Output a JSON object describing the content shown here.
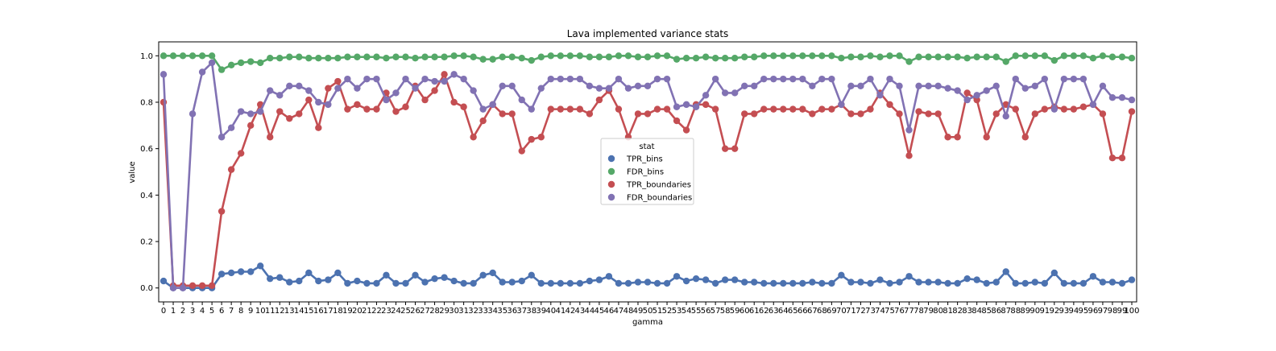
{
  "chart_data": {
    "type": "line",
    "title": "Lava implemented variance stats",
    "xlabel": "gamma",
    "ylabel": "value",
    "ylim": [
      -0.06,
      1.06
    ],
    "yticks": [
      0.0,
      0.2,
      0.4,
      0.6,
      0.8,
      1.0
    ],
    "ytick_labels": [
      "0.0",
      "0.2",
      "0.4",
      "0.6",
      "0.8",
      "1.0"
    ],
    "grid": false,
    "legend": {
      "title": "stat",
      "placement": "center"
    },
    "categories": [
      "0",
      "1",
      "2",
      "3",
      "4",
      "5",
      "6",
      "7",
      "8",
      "9",
      "10",
      "11",
      "12",
      "13",
      "14",
      "15",
      "16",
      "17",
      "18",
      "19",
      "20",
      "21",
      "22",
      "23",
      "24",
      "25",
      "26",
      "27",
      "28",
      "29",
      "30",
      "31",
      "32",
      "33",
      "34",
      "35",
      "36",
      "37",
      "38",
      "39",
      "40",
      "41",
      "42",
      "43",
      "44",
      "45",
      "46",
      "47",
      "48",
      "49",
      "50",
      "51",
      "52",
      "53",
      "54",
      "55",
      "56",
      "57",
      "58",
      "59",
      "60",
      "61",
      "62",
      "63",
      "64",
      "65",
      "66",
      "67",
      "68",
      "69",
      "70",
      "71",
      "72",
      "73",
      "74",
      "75",
      "76",
      "77",
      "78",
      "79",
      "80",
      "81",
      "82",
      "83",
      "84",
      "85",
      "86",
      "87",
      "88",
      "89",
      "90",
      "91",
      "92",
      "93",
      "94",
      "95",
      "96",
      "97",
      "98",
      "99",
      "100"
    ],
    "series": [
      {
        "name": "TPR_bins",
        "color": "#4c72b0",
        "values": [
          0.03,
          0.0,
          0.0,
          0.0,
          0.0,
          0.0,
          0.06,
          0.065,
          0.07,
          0.07,
          0.095,
          0.04,
          0.045,
          0.025,
          0.03,
          0.065,
          0.03,
          0.035,
          0.065,
          0.02,
          0.03,
          0.02,
          0.02,
          0.055,
          0.02,
          0.02,
          0.055,
          0.025,
          0.04,
          0.045,
          0.03,
          0.02,
          0.02,
          0.055,
          0.065,
          0.025,
          0.025,
          0.03,
          0.055,
          0.02,
          0.02,
          0.02,
          0.02,
          0.02,
          0.03,
          0.035,
          0.05,
          0.02,
          0.02,
          0.025,
          0.025,
          0.02,
          0.02,
          0.05,
          0.03,
          0.04,
          0.035,
          0.02,
          0.035,
          0.035,
          0.025,
          0.025,
          0.02,
          0.02,
          0.02,
          0.02,
          0.02,
          0.025,
          0.02,
          0.02,
          0.055,
          0.025,
          0.025,
          0.02,
          0.035,
          0.02,
          0.025,
          0.05,
          0.025,
          0.025,
          0.025,
          0.02,
          0.02,
          0.04,
          0.035,
          0.02,
          0.025,
          0.07,
          0.02,
          0.02,
          0.025,
          0.02,
          0.065,
          0.02,
          0.02,
          0.02,
          0.05,
          0.025,
          0.025,
          0.02,
          0.035
        ]
      },
      {
        "name": "FDR_bins",
        "color": "#55a868",
        "values": [
          1.0,
          1.0,
          1.0,
          1.0,
          1.0,
          1.0,
          0.94,
          0.96,
          0.97,
          0.975,
          0.97,
          0.99,
          0.99,
          0.995,
          0.995,
          0.99,
          0.99,
          0.99,
          0.99,
          0.995,
          0.995,
          0.995,
          0.995,
          0.99,
          0.995,
          0.995,
          0.99,
          0.995,
          0.995,
          0.995,
          1.0,
          1.0,
          0.995,
          0.985,
          0.985,
          0.995,
          0.995,
          0.99,
          0.98,
          0.995,
          1.0,
          1.0,
          1.0,
          1.0,
          0.995,
          0.995,
          0.995,
          1.0,
          1.0,
          0.995,
          0.995,
          1.0,
          1.0,
          0.985,
          0.99,
          0.99,
          0.995,
          0.99,
          0.99,
          0.99,
          0.995,
          0.995,
          1.0,
          1.0,
          1.0,
          1.0,
          1.0,
          1.0,
          1.0,
          1.0,
          0.99,
          0.995,
          0.995,
          1.0,
          0.995,
          1.0,
          1.0,
          0.975,
          0.995,
          0.995,
          0.995,
          0.995,
          0.995,
          0.99,
          0.995,
          0.995,
          0.995,
          0.975,
          1.0,
          1.0,
          1.0,
          1.0,
          0.98,
          1.0,
          1.0,
          1.0,
          0.99,
          1.0,
          0.995,
          0.995,
          0.99
        ]
      },
      {
        "name": "TPR_boundaries",
        "color": "#c44e52",
        "values": [
          0.8,
          0.01,
          0.01,
          0.01,
          0.01,
          0.01,
          0.33,
          0.51,
          0.58,
          0.7,
          0.79,
          0.65,
          0.76,
          0.73,
          0.75,
          0.81,
          0.69,
          0.86,
          0.89,
          0.77,
          0.79,
          0.77,
          0.77,
          0.84,
          0.76,
          0.78,
          0.87,
          0.81,
          0.85,
          0.92,
          0.8,
          0.78,
          0.65,
          0.72,
          0.79,
          0.75,
          0.75,
          0.59,
          0.64,
          0.65,
          0.77,
          0.77,
          0.77,
          0.77,
          0.75,
          0.81,
          0.85,
          0.77,
          0.65,
          0.75,
          0.75,
          0.77,
          0.77,
          0.72,
          0.68,
          0.79,
          0.79,
          0.77,
          0.6,
          0.6,
          0.75,
          0.75,
          0.77,
          0.77,
          0.77,
          0.77,
          0.77,
          0.75,
          0.77,
          0.77,
          0.79,
          0.75,
          0.75,
          0.77,
          0.84,
          0.79,
          0.75,
          0.57,
          0.76,
          0.75,
          0.75,
          0.65,
          0.65,
          0.84,
          0.81,
          0.65,
          0.75,
          0.79,
          0.77,
          0.65,
          0.75,
          0.77,
          0.78,
          0.77,
          0.77,
          0.78,
          0.79,
          0.75,
          0.56,
          0.56,
          0.76
        ]
      },
      {
        "name": "FDR_boundaries",
        "color": "#8172b3",
        "values": [
          0.92,
          0.0,
          0.0,
          0.75,
          0.93,
          0.97,
          0.65,
          0.69,
          0.76,
          0.75,
          0.76,
          0.85,
          0.83,
          0.87,
          0.87,
          0.85,
          0.8,
          0.79,
          0.86,
          0.9,
          0.86,
          0.9,
          0.9,
          0.81,
          0.84,
          0.9,
          0.86,
          0.9,
          0.89,
          0.89,
          0.92,
          0.9,
          0.85,
          0.77,
          0.79,
          0.87,
          0.87,
          0.81,
          0.77,
          0.86,
          0.9,
          0.9,
          0.9,
          0.9,
          0.87,
          0.86,
          0.86,
          0.9,
          0.86,
          0.87,
          0.87,
          0.9,
          0.9,
          0.78,
          0.79,
          0.78,
          0.83,
          0.9,
          0.84,
          0.84,
          0.87,
          0.87,
          0.9,
          0.9,
          0.9,
          0.9,
          0.9,
          0.87,
          0.9,
          0.9,
          0.79,
          0.87,
          0.87,
          0.9,
          0.83,
          0.9,
          0.87,
          0.68,
          0.87,
          0.87,
          0.87,
          0.86,
          0.85,
          0.81,
          0.83,
          0.85,
          0.87,
          0.74,
          0.9,
          0.86,
          0.87,
          0.9,
          0.77,
          0.9,
          0.9,
          0.9,
          0.79,
          0.87,
          0.82,
          0.82,
          0.81
        ]
      }
    ]
  }
}
